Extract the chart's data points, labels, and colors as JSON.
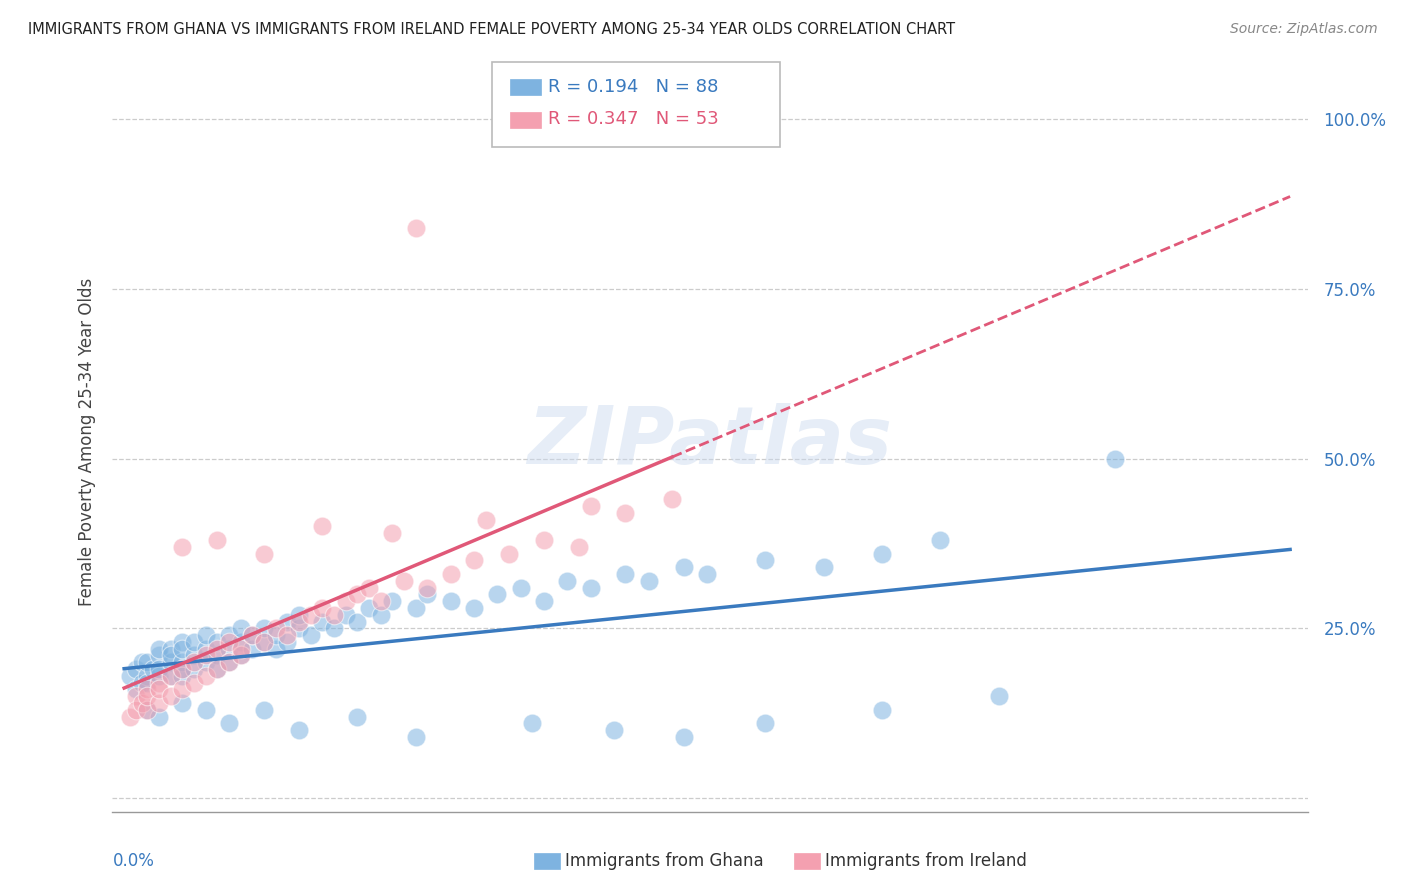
{
  "title": "IMMIGRANTS FROM GHANA VS IMMIGRANTS FROM IRELAND FEMALE POVERTY AMONG 25-34 YEAR OLDS CORRELATION CHART",
  "source": "Source: ZipAtlas.com",
  "ylabel": "Female Poverty Among 25-34 Year Olds",
  "ghana_color": "#7eb3e0",
  "ireland_color": "#f4a0b0",
  "ghana_line_color": "#3a7abf",
  "ireland_line_color": "#e05878",
  "ghana_R": 0.194,
  "ghana_N": 88,
  "ireland_R": 0.347,
  "ireland_N": 53,
  "background_color": "#ffffff",
  "watermark_text": "ZIPatlas",
  "ghana_scatter_x": [
    0.0005,
    0.001,
    0.001,
    0.0015,
    0.0015,
    0.002,
    0.002,
    0.002,
    0.0025,
    0.003,
    0.003,
    0.003,
    0.003,
    0.004,
    0.004,
    0.004,
    0.004,
    0.005,
    0.005,
    0.005,
    0.005,
    0.005,
    0.006,
    0.006,
    0.006,
    0.007,
    0.007,
    0.007,
    0.008,
    0.008,
    0.008,
    0.009,
    0.009,
    0.009,
    0.01,
    0.01,
    0.01,
    0.011,
    0.011,
    0.012,
    0.012,
    0.013,
    0.013,
    0.014,
    0.014,
    0.015,
    0.015,
    0.016,
    0.017,
    0.018,
    0.019,
    0.02,
    0.021,
    0.022,
    0.023,
    0.025,
    0.026,
    0.028,
    0.03,
    0.032,
    0.034,
    0.036,
    0.038,
    0.04,
    0.043,
    0.045,
    0.048,
    0.05,
    0.055,
    0.06,
    0.065,
    0.07,
    0.002,
    0.003,
    0.005,
    0.007,
    0.009,
    0.012,
    0.015,
    0.02,
    0.025,
    0.035,
    0.042,
    0.048,
    0.055,
    0.065,
    0.075,
    0.085
  ],
  "ghana_scatter_y": [
    0.18,
    0.19,
    0.16,
    0.17,
    0.2,
    0.18,
    0.2,
    0.17,
    0.19,
    0.21,
    0.18,
    0.22,
    0.19,
    0.2,
    0.22,
    0.18,
    0.21,
    0.19,
    0.23,
    0.2,
    0.18,
    0.22,
    0.21,
    0.19,
    0.23,
    0.22,
    0.2,
    0.24,
    0.21,
    0.23,
    0.19,
    0.22,
    0.24,
    0.2,
    0.23,
    0.21,
    0.25,
    0.22,
    0.24,
    0.23,
    0.25,
    0.22,
    0.24,
    0.26,
    0.23,
    0.25,
    0.27,
    0.24,
    0.26,
    0.25,
    0.27,
    0.26,
    0.28,
    0.27,
    0.29,
    0.28,
    0.3,
    0.29,
    0.28,
    0.3,
    0.31,
    0.29,
    0.32,
    0.31,
    0.33,
    0.32,
    0.34,
    0.33,
    0.35,
    0.34,
    0.36,
    0.38,
    0.13,
    0.12,
    0.14,
    0.13,
    0.11,
    0.13,
    0.1,
    0.12,
    0.09,
    0.11,
    0.1,
    0.09,
    0.11,
    0.13,
    0.15,
    0.5
  ],
  "ireland_scatter_x": [
    0.0005,
    0.001,
    0.001,
    0.0015,
    0.002,
    0.002,
    0.002,
    0.003,
    0.003,
    0.003,
    0.004,
    0.004,
    0.005,
    0.005,
    0.006,
    0.006,
    0.007,
    0.007,
    0.008,
    0.008,
    0.009,
    0.009,
    0.01,
    0.01,
    0.011,
    0.012,
    0.013,
    0.014,
    0.015,
    0.016,
    0.017,
    0.018,
    0.019,
    0.02,
    0.021,
    0.022,
    0.024,
    0.026,
    0.028,
    0.03,
    0.033,
    0.036,
    0.039,
    0.043,
    0.047,
    0.005,
    0.008,
    0.012,
    0.017,
    0.023,
    0.031,
    0.04,
    0.025
  ],
  "ireland_scatter_y": [
    0.12,
    0.15,
    0.13,
    0.14,
    0.16,
    0.13,
    0.15,
    0.17,
    0.14,
    0.16,
    0.15,
    0.18,
    0.16,
    0.19,
    0.17,
    0.2,
    0.18,
    0.21,
    0.19,
    0.22,
    0.2,
    0.23,
    0.21,
    0.22,
    0.24,
    0.23,
    0.25,
    0.24,
    0.26,
    0.27,
    0.28,
    0.27,
    0.29,
    0.3,
    0.31,
    0.29,
    0.32,
    0.31,
    0.33,
    0.35,
    0.36,
    0.38,
    0.37,
    0.42,
    0.44,
    0.37,
    0.38,
    0.36,
    0.4,
    0.39,
    0.41,
    0.43,
    0.84
  ],
  "xlim": [
    0.0,
    0.1
  ],
  "ylim": [
    0.0,
    1.05
  ],
  "ytick_values": [
    0.0,
    0.25,
    0.5,
    0.75,
    1.0
  ],
  "ytick_labels": [
    "",
    "25.0%",
    "50.0%",
    "75.0%",
    "100.0%"
  ]
}
